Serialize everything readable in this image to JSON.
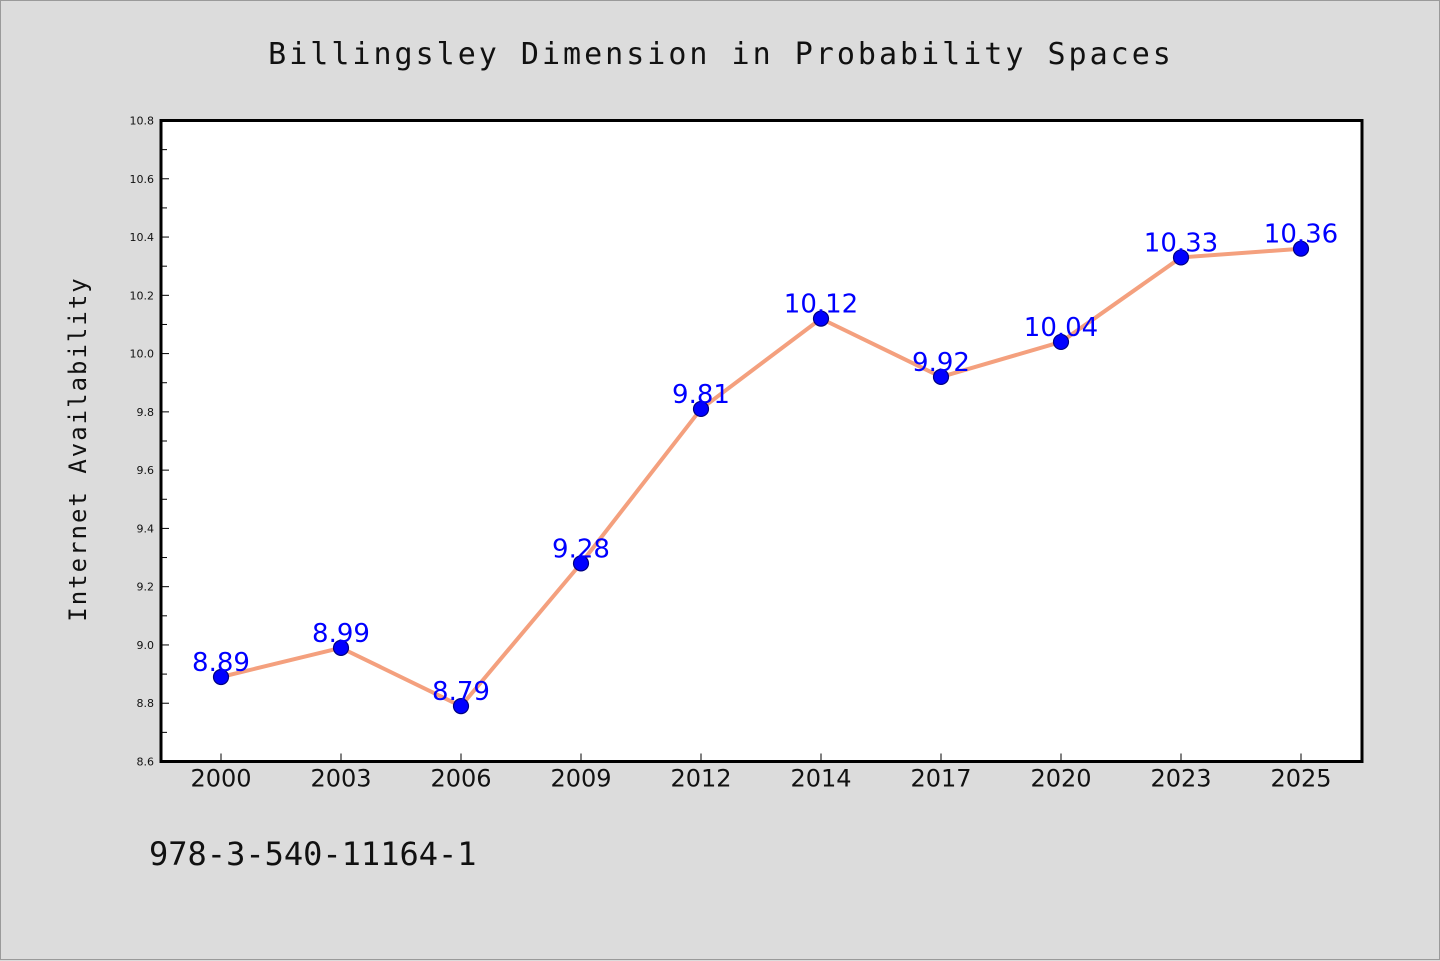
{
  "chart_data": {
    "type": "line",
    "title": "Billingsley Dimension in Probability Spaces",
    "xlabel": "",
    "ylabel": "Internet Availability",
    "categories": [
      "2000",
      "2003",
      "2006",
      "2009",
      "2012",
      "2014",
      "2017",
      "2020",
      "2023",
      "2025"
    ],
    "series": [
      {
        "values": [
          8.89,
          8.99,
          8.79,
          9.28,
          9.81,
          10.12,
          9.92,
          10.04,
          10.33,
          10.36
        ],
        "data_labels": [
          "8.89",
          "8.99",
          "8.79",
          "9.28",
          "9.81",
          "10.12",
          "9.92",
          "10.04",
          "10.33",
          "10.36"
        ]
      }
    ],
    "ylim": [
      8.6,
      10.8
    ],
    "yticks": [
      "8.6",
      "8.8",
      "9.0",
      "9.2",
      "9.4",
      "9.6",
      "9.8",
      "10.0",
      "10.2",
      "10.4",
      "10.6",
      "10.8"
    ],
    "yticks_minor_step": 0.1,
    "grid": false,
    "legend": "none",
    "colors": {
      "line": "#f4a07e",
      "marker_fill": "#0000ff",
      "marker_edge": "#000080",
      "data_label": "#0000ff",
      "plot_background": "#ffffff",
      "figure_background": "#dcdcdc",
      "axes_edge": "#000000"
    }
  },
  "footer": {
    "text": "978-3-540-11164-1"
  }
}
